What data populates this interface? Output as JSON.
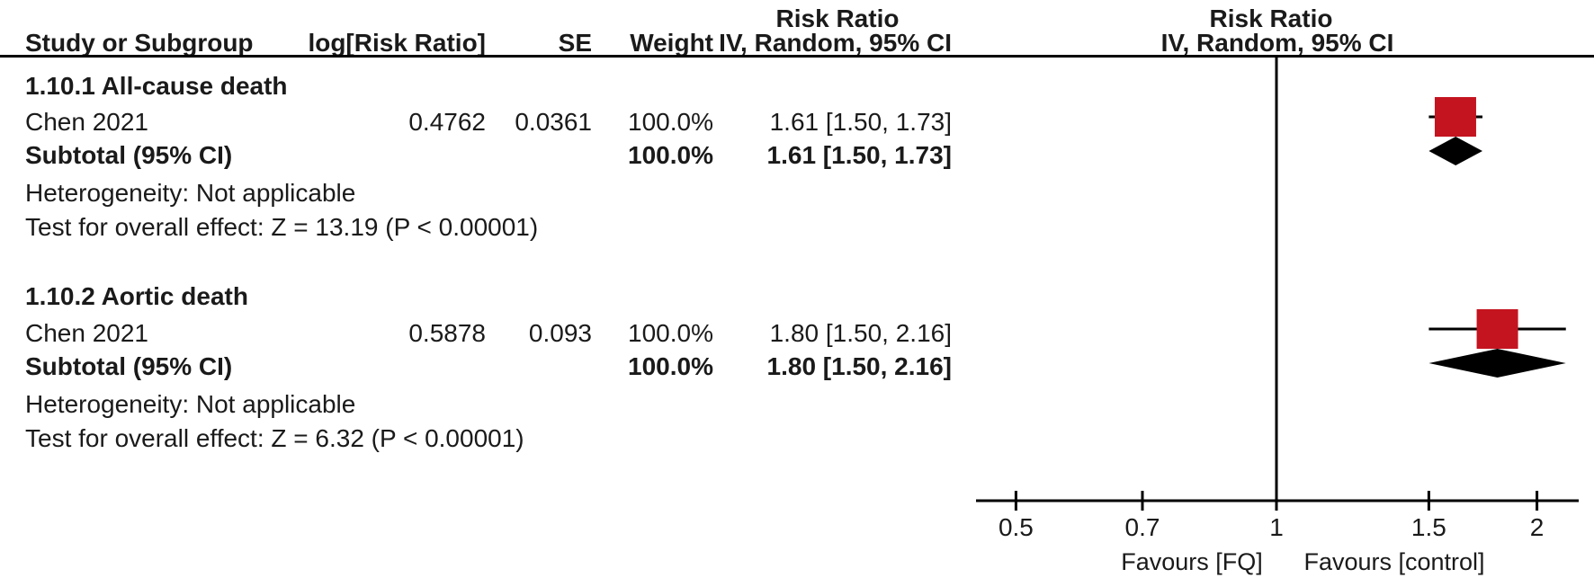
{
  "table": {
    "header": {
      "effect_title": "Risk Ratio",
      "effect_subtitle": "IV, Random, 95% CI",
      "col_study": "Study or Subgroup",
      "col_log_rr": "log[Risk Ratio]",
      "col_se": "SE",
      "col_weight": "Weight",
      "plot_title": "Risk Ratio",
      "plot_subtitle": "IV, Random, 95% CI"
    },
    "subgroups": [
      {
        "heading": "1.10.1 All-cause death",
        "study": {
          "name": "Chen 2021",
          "log_rr": "0.4762",
          "se": "0.0361",
          "weight": "100.0%",
          "ci": "1.61 [1.50, 1.73]"
        },
        "subtotal": {
          "label": "Subtotal (95% CI)",
          "weight": "100.0%",
          "ci": "1.61 [1.50, 1.73]"
        },
        "heterogeneity": "Heterogeneity: Not applicable",
        "overall_effect": "Test for overall effect: Z = 13.19 (P < 0.00001)"
      },
      {
        "heading": "1.10.2 Aortic death",
        "study": {
          "name": "Chen 2021",
          "log_rr": "0.5878",
          "se": "0.093",
          "weight": "100.0%",
          "ci": "1.80 [1.50, 2.16]"
        },
        "subtotal": {
          "label": "Subtotal (95% CI)",
          "weight": "100.0%",
          "ci": "1.80 [1.50, 2.16]"
        },
        "heterogeneity": "Heterogeneity: Not applicable",
        "overall_effect": "Test for overall effect: Z = 6.32 (P < 0.00001)"
      }
    ]
  },
  "chart_data": {
    "type": "scatter",
    "variant": "forest-plot",
    "title": "Risk Ratio",
    "subtitle": "IV, Random, 95% CI",
    "x_scale": "log",
    "axis": {
      "min": 0.45,
      "max": 2.2,
      "null_line": 1,
      "ticks": [
        {
          "value": 0.5,
          "label": "0.5"
        },
        {
          "value": 0.7,
          "label": "0.7"
        },
        {
          "value": 1,
          "label": "1"
        },
        {
          "value": 1.5,
          "label": "1.5"
        },
        {
          "value": 2,
          "label": "2"
        }
      ]
    },
    "favours_left": "Favours [FQ]",
    "favours_right": "Favours [control]",
    "points": [
      {
        "subgroup": 0,
        "row": "study",
        "label": "Chen 2021",
        "estimate": 1.61,
        "ci_low": 1.5,
        "ci_high": 1.73,
        "weight_pct": 100.0,
        "marker": "square",
        "color": "#c41420"
      },
      {
        "subgroup": 0,
        "row": "subtotal",
        "label": "Subtotal (95% CI)",
        "estimate": 1.61,
        "ci_low": 1.5,
        "ci_high": 1.73,
        "marker": "diamond",
        "color": "#000000"
      },
      {
        "subgroup": 1,
        "row": "study",
        "label": "Chen 2021",
        "estimate": 1.8,
        "ci_low": 1.5,
        "ci_high": 2.16,
        "weight_pct": 100.0,
        "marker": "square",
        "color": "#c41420"
      },
      {
        "subgroup": 1,
        "row": "subtotal",
        "label": "Subtotal (95% CI)",
        "estimate": 1.8,
        "ci_low": 1.5,
        "ci_high": 2.16,
        "marker": "diamond",
        "color": "#000000"
      }
    ],
    "colors": {
      "marker_red": "#c41420",
      "line_black": "#000000"
    }
  }
}
